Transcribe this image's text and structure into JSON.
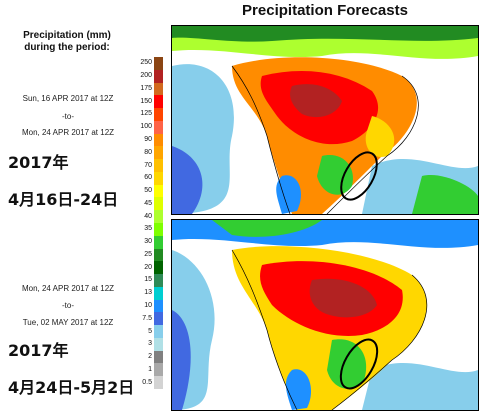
{
  "title": "Precipitation Forecasts",
  "legend_title_line1": "Precipitation (mm)",
  "legend_title_line2": "during the period:",
  "period1": {
    "start": "Sun, 16 APR 2017 at 12Z",
    "to": "-to-",
    "end": "Mon, 24 APR 2017 at 12Z",
    "cn_year": "2017年",
    "cn_range": "4月16日-24日"
  },
  "period2": {
    "start": "Mon, 24 APR 2017 at 12Z",
    "to": "-to-",
    "end": "Tue, 02 MAY 2017 at 12Z",
    "cn_year": "2017年",
    "cn_range": "4月24日-5月2日"
  },
  "scale": {
    "values": [
      "250",
      "200",
      "175",
      "150",
      "125",
      "100",
      "90",
      "80",
      "70",
      "60",
      "50",
      "45",
      "40",
      "35",
      "30",
      "25",
      "20",
      "15",
      "13",
      "10",
      "7.5",
      "5",
      "3",
      "2",
      "1",
      "0.5"
    ],
    "colors": [
      "#8b4513",
      "#b22222",
      "#d2691e",
      "#ff0000",
      "#ff4500",
      "#ff6347",
      "#ff8c00",
      "#ffa500",
      "#ffc000",
      "#ffd700",
      "#ffff00",
      "#dfff00",
      "#adff2f",
      "#7fff00",
      "#32cd32",
      "#228b22",
      "#006400",
      "#2e8b57",
      "#00ced1",
      "#1e90ff",
      "#4169e1",
      "#87ceeb",
      "#b0e0e6",
      "#808080",
      "#a9a9a9",
      "#d3d3d3"
    ]
  }
}
